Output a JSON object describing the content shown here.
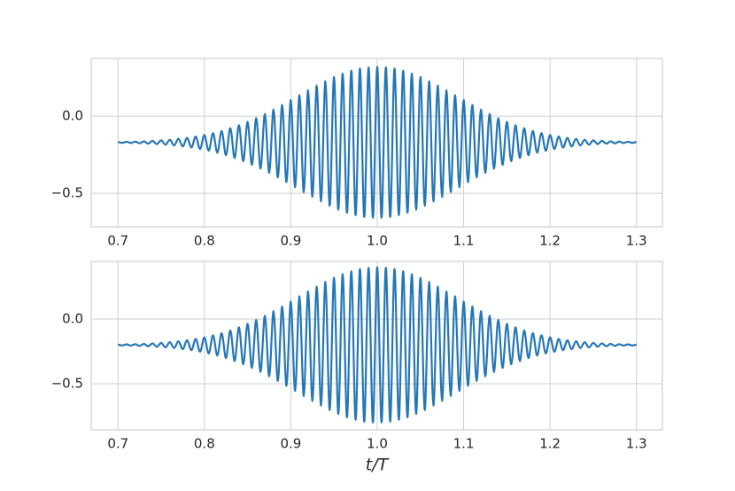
{
  "chart_data": [
    {
      "type": "line",
      "color": "#2577b5",
      "grid": true,
      "xlim": [
        0.669,
        1.33
      ],
      "ylim": [
        -0.718,
        0.374
      ],
      "xticks": [
        0.7,
        0.8,
        0.9,
        {
          "value": 1,
          "label": "1.0"
        },
        1.1,
        1.2,
        1.3
      ],
      "yticks": [
        {
          "value": -0.5,
          "label": "−0.5"
        },
        {
          "value": 0,
          "label": "0.0"
        }
      ],
      "x": [
        0.7,
        0.705,
        0.71,
        0.715,
        0.72,
        0.725,
        0.73,
        0.735,
        0.74,
        0.745,
        0.75,
        0.755,
        0.76,
        0.765,
        0.77,
        0.775,
        0.78,
        0.785,
        0.79,
        0.795,
        0.8,
        0.805,
        0.81,
        0.815,
        0.82,
        0.825,
        0.83,
        0.835,
        0.84,
        0.845,
        0.85,
        0.855,
        0.86,
        0.865,
        0.87,
        0.875,
        0.88,
        0.885,
        0.89,
        0.895,
        0.9,
        0.905,
        0.91,
        0.915,
        0.92,
        0.925,
        0.93,
        0.935,
        0.94,
        0.945,
        0.95,
        0.955,
        0.96,
        0.965,
        0.97,
        0.975,
        0.98,
        0.985,
        0.99,
        0.995,
        1.0,
        1.005,
        1.01,
        1.015,
        1.02,
        1.025,
        1.03,
        1.035,
        1.04,
        1.045,
        1.05,
        1.055,
        1.06,
        1.065,
        1.07,
        1.075,
        1.08,
        1.085,
        1.09,
        1.095,
        1.1,
        1.105,
        1.11,
        1.115,
        1.12,
        1.125,
        1.13,
        1.135,
        1.14,
        1.145,
        1.15,
        1.155,
        1.16,
        1.165,
        1.17,
        1.175,
        1.18,
        1.185,
        1.19,
        1.195,
        1.2,
        1.205,
        1.21,
        1.215,
        1.22,
        1.225,
        1.23,
        1.235,
        1.24,
        1.245,
        1.25,
        1.255,
        1.26,
        1.265,
        1.27,
        1.275,
        1.28,
        1.285,
        1.29,
        1.295,
        1.3
      ],
      "values": [
        -0.167,
        -0.173,
        -0.166,
        -0.174,
        -0.165,
        -0.176,
        -0.163,
        -0.178,
        -0.16,
        -0.181,
        -0.157,
        -0.185,
        -0.153,
        -0.19,
        -0.147,
        -0.196,
        -0.141,
        -0.203,
        -0.132,
        -0.213,
        -0.122,
        -0.224,
        -0.11,
        -0.237,
        -0.096,
        -0.253,
        -0.078,
        -0.271,
        -0.059,
        -0.292,
        -0.037,
        -0.315,
        -0.013,
        -0.34,
        0.014,
        -0.367,
        0.042,
        -0.397,
        0.073,
        -0.428,
        0.104,
        -0.46,
        0.136,
        -0.492,
        0.168,
        -0.523,
        0.198,
        -0.553,
        0.227,
        -0.581,
        0.254,
        -0.606,
        0.276,
        -0.626,
        0.295,
        -0.642,
        0.309,
        -0.654,
        0.317,
        -0.659,
        0.32,
        -0.659,
        0.317,
        -0.654,
        0.309,
        -0.642,
        0.295,
        -0.626,
        0.276,
        -0.606,
        0.254,
        -0.581,
        0.227,
        -0.553,
        0.198,
        -0.523,
        0.168,
        -0.492,
        0.136,
        -0.46,
        0.104,
        -0.428,
        0.073,
        -0.397,
        0.042,
        -0.367,
        0.014,
        -0.34,
        -0.013,
        -0.315,
        -0.037,
        -0.292,
        -0.059,
        -0.271,
        -0.078,
        -0.253,
        -0.096,
        -0.237,
        -0.11,
        -0.224,
        -0.122,
        -0.213,
        -0.132,
        -0.203,
        -0.141,
        -0.196,
        -0.147,
        -0.19,
        -0.153,
        -0.185,
        -0.157,
        -0.181,
        -0.16,
        -0.178,
        -0.163,
        -0.176,
        -0.165,
        -0.174,
        -0.166,
        -0.173,
        -0.167
      ]
    },
    {
      "type": "line",
      "color": "#2577b5",
      "grid": true,
      "x_label": "t/T",
      "xlim": [
        0.669,
        1.33
      ],
      "ylim": [
        -0.856,
        0.445
      ],
      "xticks": [
        0.7,
        0.8,
        0.9,
        {
          "value": 1,
          "label": "1.0"
        },
        1.1,
        1.2,
        1.3
      ],
      "yticks": [
        {
          "value": -0.5,
          "label": "−0.5"
        },
        {
          "value": 0,
          "label": "0.0"
        }
      ],
      "x": [
        0.7,
        0.705,
        0.71,
        0.715,
        0.72,
        0.725,
        0.73,
        0.735,
        0.74,
        0.745,
        0.75,
        0.755,
        0.76,
        0.765,
        0.77,
        0.775,
        0.78,
        0.785,
        0.79,
        0.795,
        0.8,
        0.805,
        0.81,
        0.815,
        0.82,
        0.825,
        0.83,
        0.835,
        0.84,
        0.845,
        0.85,
        0.855,
        0.86,
        0.865,
        0.87,
        0.875,
        0.88,
        0.885,
        0.89,
        0.895,
        0.9,
        0.905,
        0.91,
        0.915,
        0.92,
        0.925,
        0.93,
        0.935,
        0.94,
        0.945,
        0.95,
        0.955,
        0.96,
        0.965,
        0.97,
        0.975,
        0.98,
        0.985,
        0.99,
        0.995,
        1.0,
        1.005,
        1.01,
        1.015,
        1.02,
        1.025,
        1.03,
        1.035,
        1.04,
        1.045,
        1.05,
        1.055,
        1.06,
        1.065,
        1.07,
        1.075,
        1.08,
        1.085,
        1.09,
        1.095,
        1.1,
        1.105,
        1.11,
        1.115,
        1.12,
        1.125,
        1.13,
        1.135,
        1.14,
        1.145,
        1.15,
        1.155,
        1.16,
        1.165,
        1.17,
        1.175,
        1.18,
        1.185,
        1.19,
        1.195,
        1.2,
        1.205,
        1.21,
        1.215,
        1.22,
        1.225,
        1.23,
        1.235,
        1.24,
        1.245,
        1.25,
        1.255,
        1.26,
        1.265,
        1.27,
        1.275,
        1.28,
        1.285,
        1.29,
        1.295,
        1.3
      ],
      "values": [
        -0.197,
        -0.204,
        -0.195,
        -0.205,
        -0.194,
        -0.207,
        -0.192,
        -0.21,
        -0.188,
        -0.214,
        -0.184,
        -0.219,
        -0.179,
        -0.224,
        -0.172,
        -0.232,
        -0.164,
        -0.241,
        -0.154,
        -0.252,
        -0.141,
        -0.266,
        -0.126,
        -0.282,
        -0.109,
        -0.301,
        -0.088,
        -0.324,
        -0.064,
        -0.349,
        -0.037,
        -0.377,
        -0.008,
        -0.408,
        0.025,
        -0.442,
        0.06,
        -0.478,
        0.097,
        -0.516,
        0.135,
        -0.555,
        0.175,
        -0.594,
        0.213,
        -0.633,
        0.251,
        -0.669,
        0.287,
        -0.703,
        0.319,
        -0.733,
        0.347,
        -0.759,
        0.369,
        -0.778,
        0.386,
        -0.792,
        0.396,
        -0.799,
        0.4,
        -0.799,
        0.396,
        -0.792,
        0.386,
        -0.778,
        0.369,
        -0.759,
        0.347,
        -0.733,
        0.319,
        -0.703,
        0.287,
        -0.669,
        0.251,
        -0.633,
        0.213,
        -0.594,
        0.175,
        -0.555,
        0.135,
        -0.516,
        0.097,
        -0.478,
        0.06,
        -0.442,
        0.025,
        -0.408,
        -0.008,
        -0.377,
        -0.037,
        -0.349,
        -0.064,
        -0.324,
        -0.088,
        -0.301,
        -0.109,
        -0.282,
        -0.126,
        -0.266,
        -0.141,
        -0.252,
        -0.154,
        -0.241,
        -0.164,
        -0.232,
        -0.172,
        -0.224,
        -0.179,
        -0.219,
        -0.184,
        -0.214,
        -0.188,
        -0.21,
        -0.192,
        -0.207,
        -0.194,
        -0.205,
        -0.195,
        -0.204,
        -0.197
      ]
    }
  ]
}
